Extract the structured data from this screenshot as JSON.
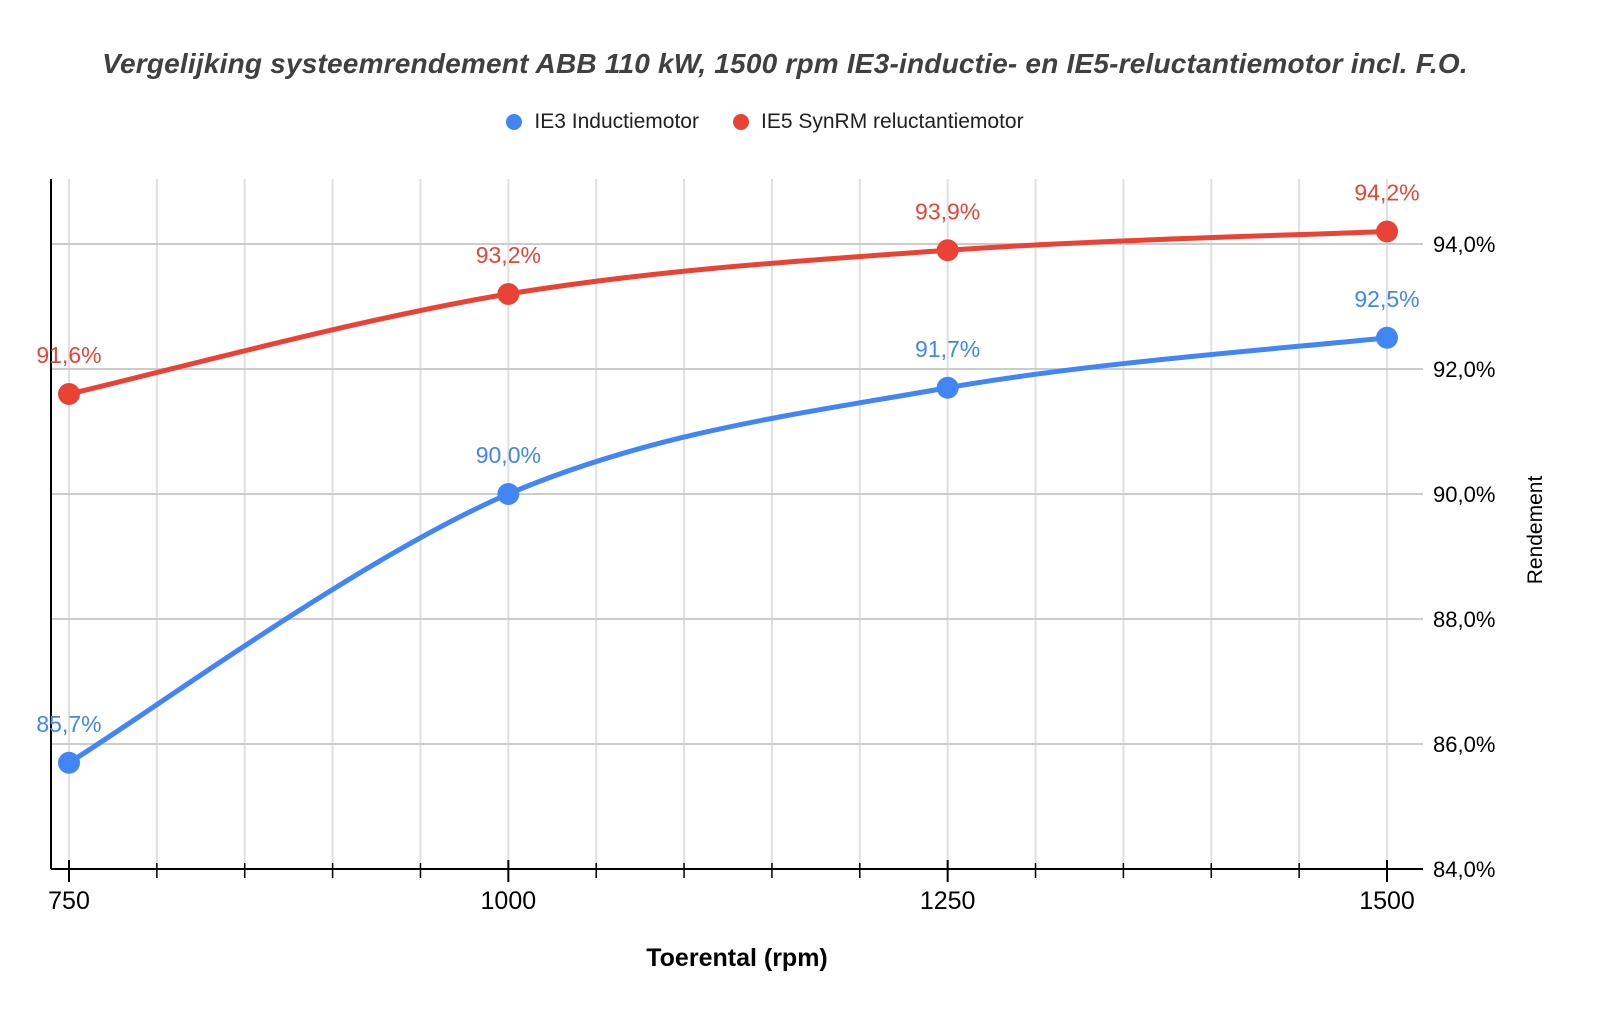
{
  "chart": {
    "title": "Vergelijking systeemrendement ABB 110 kW, 1500 rpm IE3-inductie- en IE5-reluctantiemotor incl. F.O."
  },
  "chart_data": {
    "type": "line",
    "smooth": true,
    "title": "Vergelijking systeemrendement ABB 110 kW, 1500 rpm IE3-inductie- en IE5-reluctantiemotor incl. F.O.",
    "xlabel": "Toerental (rpm)",
    "ylabel": "Rendement",
    "x": [
      750,
      1000,
      1250,
      1500
    ],
    "x_tick_labels": [
      "750",
      "1000",
      "1250",
      "1500"
    ],
    "x_minor_step": 50,
    "y_tick_values": [
      84,
      86,
      88,
      90,
      92,
      94
    ],
    "y_tick_labels": [
      "84,0%",
      "86,0%",
      "88,0%",
      "90,0%",
      "92,0%",
      "94,0%"
    ],
    "ylim": [
      84,
      95
    ],
    "xlim": [
      750,
      1500
    ],
    "grid": true,
    "legend_position": "top",
    "series": [
      {
        "name": "IE3 Inductiemotor",
        "color": "#4285f4",
        "values": [
          85.7,
          90.0,
          91.7,
          92.5
        ],
        "point_labels": [
          "85,7%",
          "90,0%",
          "91,7%",
          "92,5%"
        ]
      },
      {
        "name": "IE5 SynRM reluctantiemotor",
        "color": "#ea4335",
        "values": [
          91.6,
          93.2,
          93.9,
          94.2
        ],
        "point_labels": [
          "91,6%",
          "93,2%",
          "93,9%",
          "94,2%"
        ]
      }
    ],
    "colors": {
      "title_text": "#404040",
      "axis_text": "#000000",
      "legend_text": "#212121",
      "axis_line": "#000000",
      "gridline_horizontal": "#cccccc",
      "gridline_vertical": "#e0e0e0"
    }
  }
}
